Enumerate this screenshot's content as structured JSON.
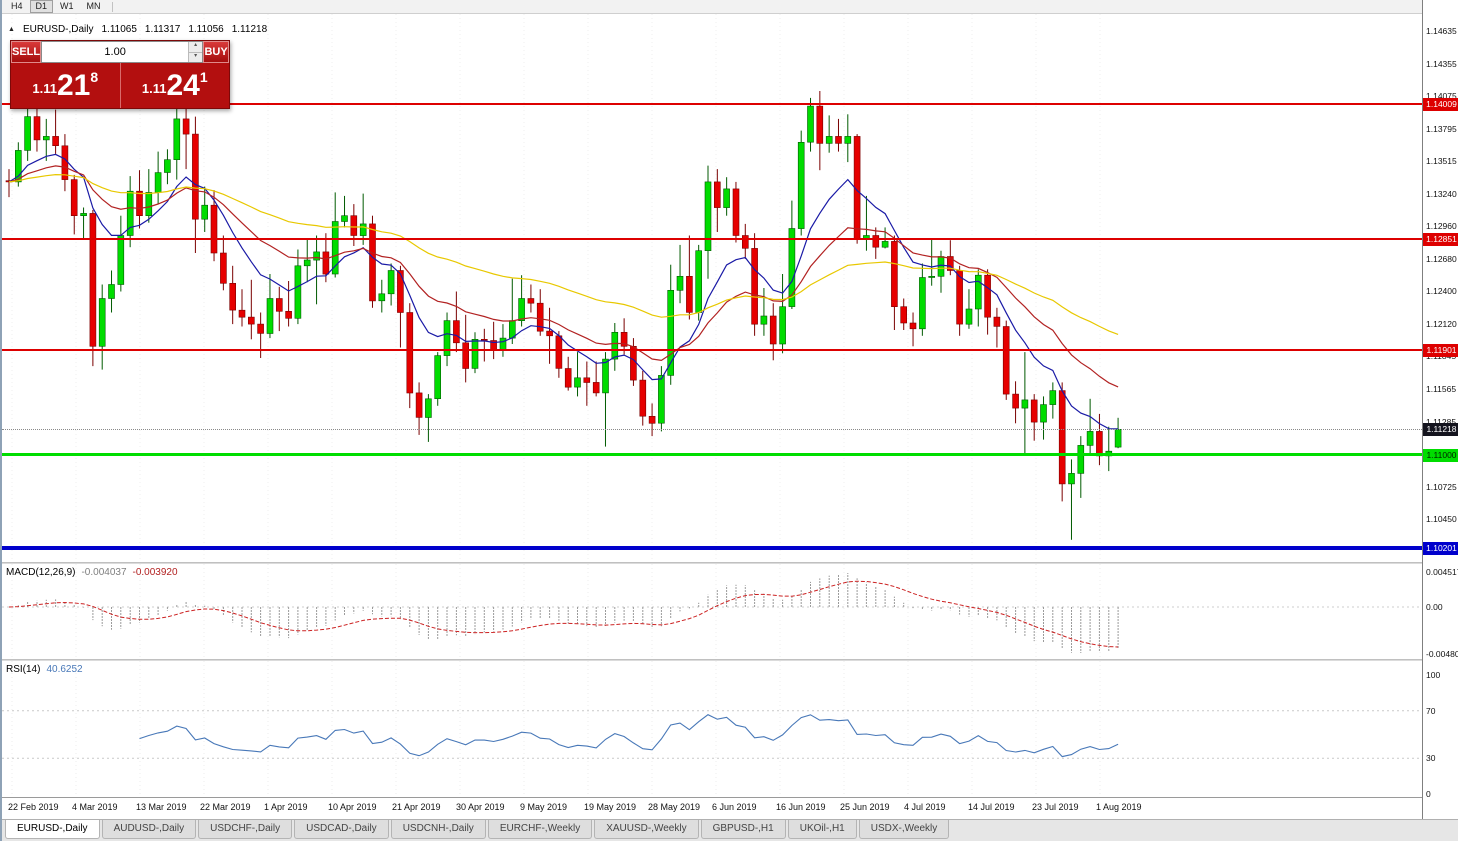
{
  "toolbar": {
    "items": [
      "H4",
      "D1",
      "W1",
      "MN"
    ],
    "active": "D1"
  },
  "chart_info": {
    "symbol_period": "EURUSD-,Daily",
    "open": "1.11065",
    "high": "1.11317",
    "low": "1.11056",
    "close": "1.11218"
  },
  "trade_panel": {
    "sell_label": "SELL",
    "buy_label": "BUY",
    "volume": "1.00",
    "sell": {
      "prefix": "1.11",
      "big": "21",
      "sup": "8"
    },
    "buy": {
      "prefix": "1.11",
      "big": "24",
      "sup": "1"
    }
  },
  "price_axis": {
    "labels": [
      "1.14635",
      "1.14355",
      "1.14075",
      "1.13795",
      "1.13515",
      "1.13240",
      "1.12960",
      "1.12680",
      "1.12400",
      "1.12120",
      "1.11845",
      "1.11565",
      "1.11285",
      "1.11005",
      "1.10725",
      "1.10450"
    ],
    "tags": [
      {
        "text": "1.14009",
        "price": 1.14009,
        "bg": "#dd0000",
        "fg": "#ffffff"
      },
      {
        "text": "1.12851",
        "price": 1.12851,
        "bg": "#dd0000",
        "fg": "#ffffff"
      },
      {
        "text": "1.11901",
        "price": 1.11901,
        "bg": "#dd0000",
        "fg": "#ffffff"
      },
      {
        "text": "1.11218",
        "price": 1.11218,
        "bg": "#14141e",
        "fg": "#ffffff"
      },
      {
        "text": "1.11000",
        "price": 1.11,
        "bg": "#00dd00",
        "fg": "#002000"
      },
      {
        "text": "1.10201",
        "price": 1.10201,
        "bg": "#0000cc",
        "fg": "#ffffff"
      }
    ]
  },
  "levels": [
    {
      "price": 1.14009,
      "color": "#dd0000",
      "width": 2
    },
    {
      "price": 1.12851,
      "color": "#dd0000",
      "width": 2
    },
    {
      "price": 1.11901,
      "color": "#dd0000",
      "width": 2
    },
    {
      "price": 1.11,
      "color": "#00dd00",
      "width": 3
    },
    {
      "price": 1.10201,
      "color": "#0000cc",
      "width": 4
    }
  ],
  "bid": {
    "price": 1.11218
  },
  "indicators": {
    "macd": {
      "name": "MACD(12,26,9)",
      "value_main": "-0.004037",
      "value_signal": "-0.003920",
      "axis": [
        "0.004517",
        "0.00",
        "-0.00480"
      ]
    },
    "rsi": {
      "name": "RSI(14)",
      "value": "40.6252",
      "axis": [
        "100",
        "70",
        "30",
        "0"
      ],
      "levels": [
        70,
        30
      ]
    }
  },
  "date_axis": {
    "labels": [
      "22 Feb 2019",
      "4 Mar 2019",
      "13 Mar 2019",
      "22 Mar 2019",
      "1 Apr 2019",
      "10 Apr 2019",
      "21 Apr 2019",
      "30 Apr 2019",
      "9 May 2019",
      "19 May 2019",
      "28 May 2019",
      "6 Jun 2019",
      "16 Jun 2019",
      "25 Jun 2019",
      "4 Jul 2019",
      "14 Jul 2019",
      "23 Jul 2019",
      "1 Aug 2019"
    ]
  },
  "tabs": [
    {
      "label": "EURUSD-,Daily",
      "active": true
    },
    {
      "label": "AUDUSD-,Daily",
      "active": false
    },
    {
      "label": "USDCHF-,Daily",
      "active": false
    },
    {
      "label": "USDCAD-,Daily",
      "active": false
    },
    {
      "label": "USDCNH-,Daily",
      "active": false
    },
    {
      "label": "EURCHF-,Weekly",
      "active": false
    },
    {
      "label": "XAUUSD-,Weekly",
      "active": false
    },
    {
      "label": "GBPUSD-,H1",
      "active": false
    },
    {
      "label": "UKOil-,H1",
      "active": false
    },
    {
      "label": "USDX-,Weekly",
      "active": false
    }
  ],
  "chart_data": {
    "type": "candlestick",
    "symbol": "EURUSD",
    "timeframe": "Daily",
    "price_range": [
      1.1008,
      1.1478
    ],
    "moving_averages": [
      {
        "period": 10,
        "color": "#1a1aa6"
      },
      {
        "period": 22,
        "color": "#b22222"
      },
      {
        "period": 55,
        "color": "#e8c800"
      }
    ],
    "candles": [
      [
        1.1335,
        1.1345,
        1.1321,
        1.1334
      ],
      [
        1.1334,
        1.1368,
        1.133,
        1.1361
      ],
      [
        1.1361,
        1.1398,
        1.1352,
        1.139
      ],
      [
        1.139,
        1.1404,
        1.136,
        1.137
      ],
      [
        1.137,
        1.1388,
        1.1352,
        1.1373
      ],
      [
        1.1373,
        1.1396,
        1.1358,
        1.1365
      ],
      [
        1.1365,
        1.1375,
        1.1326,
        1.1336
      ],
      [
        1.1336,
        1.134,
        1.1289,
        1.1305
      ],
      [
        1.1305,
        1.1312,
        1.1285,
        1.1307
      ],
      [
        1.1307,
        1.131,
        1.1176,
        1.1193
      ],
      [
        1.1193,
        1.1246,
        1.1173,
        1.1234
      ],
      [
        1.1234,
        1.1258,
        1.1222,
        1.1246
      ],
      [
        1.1246,
        1.1305,
        1.124,
        1.1288
      ],
      [
        1.1288,
        1.1339,
        1.1278,
        1.1326
      ],
      [
        1.1326,
        1.1344,
        1.1294,
        1.1305
      ],
      [
        1.1305,
        1.1345,
        1.1299,
        1.1325
      ],
      [
        1.1325,
        1.136,
        1.1315,
        1.1342
      ],
      [
        1.1342,
        1.1362,
        1.1332,
        1.1353
      ],
      [
        1.1353,
        1.14,
        1.1336,
        1.1388
      ],
      [
        1.1388,
        1.1398,
        1.1345,
        1.1375
      ],
      [
        1.1375,
        1.139,
        1.1273,
        1.1302
      ],
      [
        1.1302,
        1.133,
        1.1291,
        1.1314
      ],
      [
        1.1314,
        1.1327,
        1.1266,
        1.1273
      ],
      [
        1.1273,
        1.1288,
        1.1241,
        1.1247
      ],
      [
        1.1247,
        1.1262,
        1.1212,
        1.1224
      ],
      [
        1.1224,
        1.1242,
        1.121,
        1.1218
      ],
      [
        1.1218,
        1.125,
        1.1199,
        1.1212
      ],
      [
        1.1212,
        1.1222,
        1.1183,
        1.1204
      ],
      [
        1.1204,
        1.1255,
        1.12,
        1.1234
      ],
      [
        1.1234,
        1.1244,
        1.1206,
        1.1223
      ],
      [
        1.1223,
        1.1249,
        1.121,
        1.1217
      ],
      [
        1.1217,
        1.1276,
        1.1212,
        1.1262
      ],
      [
        1.1262,
        1.1285,
        1.1248,
        1.1267
      ],
      [
        1.1267,
        1.1288,
        1.1229,
        1.1274
      ],
      [
        1.1274,
        1.129,
        1.1248,
        1.1255
      ],
      [
        1.1255,
        1.1325,
        1.1252,
        1.13
      ],
      [
        1.13,
        1.1322,
        1.1295,
        1.1305
      ],
      [
        1.1305,
        1.1315,
        1.1279,
        1.1288
      ],
      [
        1.1288,
        1.1324,
        1.128,
        1.1298
      ],
      [
        1.1298,
        1.1305,
        1.1226,
        1.1232
      ],
      [
        1.1232,
        1.125,
        1.1222,
        1.1238
      ],
      [
        1.1238,
        1.1264,
        1.1228,
        1.1258
      ],
      [
        1.1258,
        1.1262,
        1.1192,
        1.1222
      ],
      [
        1.1222,
        1.123,
        1.114,
        1.1153
      ],
      [
        1.1153,
        1.1162,
        1.1117,
        1.1132
      ],
      [
        1.1132,
        1.1152,
        1.1111,
        1.1148
      ],
      [
        1.1148,
        1.1188,
        1.1142,
        1.1185
      ],
      [
        1.1185,
        1.1222,
        1.1176,
        1.1215
      ],
      [
        1.1215,
        1.124,
        1.1188,
        1.1196
      ],
      [
        1.1196,
        1.122,
        1.1162,
        1.1174
      ],
      [
        1.1174,
        1.1205,
        1.117,
        1.1199
      ],
      [
        1.1199,
        1.1208,
        1.118,
        1.1198
      ],
      [
        1.1198,
        1.1214,
        1.1182,
        1.119
      ],
      [
        1.119,
        1.1212,
        1.1184,
        1.12
      ],
      [
        1.12,
        1.1251,
        1.1195,
        1.1215
      ],
      [
        1.1215,
        1.1254,
        1.121,
        1.1234
      ],
      [
        1.1234,
        1.1246,
        1.1222,
        1.123
      ],
      [
        1.123,
        1.1242,
        1.1202,
        1.1206
      ],
      [
        1.1206,
        1.1226,
        1.1178,
        1.1202
      ],
      [
        1.1202,
        1.1206,
        1.1166,
        1.1174
      ],
      [
        1.1174,
        1.1184,
        1.1155,
        1.1158
      ],
      [
        1.1158,
        1.1188,
        1.115,
        1.1166
      ],
      [
        1.1166,
        1.118,
        1.1142,
        1.1162
      ],
      [
        1.1162,
        1.118,
        1.115,
        1.1153
      ],
      [
        1.1153,
        1.1188,
        1.1107,
        1.1182
      ],
      [
        1.1182,
        1.1213,
        1.1172,
        1.1205
      ],
      [
        1.1205,
        1.1217,
        1.1186,
        1.1193
      ],
      [
        1.1193,
        1.12,
        1.1159,
        1.1164
      ],
      [
        1.1164,
        1.1172,
        1.1125,
        1.1133
      ],
      [
        1.1133,
        1.1144,
        1.1116,
        1.1127
      ],
      [
        1.1127,
        1.1176,
        1.112,
        1.1168
      ],
      [
        1.1168,
        1.1263,
        1.116,
        1.1241
      ],
      [
        1.1241,
        1.128,
        1.123,
        1.1253
      ],
      [
        1.1253,
        1.1288,
        1.1216,
        1.1222
      ],
      [
        1.1222,
        1.128,
        1.1215,
        1.1275
      ],
      [
        1.1275,
        1.1348,
        1.1251,
        1.1334
      ],
      [
        1.1334,
        1.1345,
        1.1291,
        1.1312
      ],
      [
        1.1312,
        1.1338,
        1.1305,
        1.1328
      ],
      [
        1.1328,
        1.1334,
        1.1282,
        1.1288
      ],
      [
        1.1288,
        1.1298,
        1.1268,
        1.1277
      ],
      [
        1.1277,
        1.129,
        1.1202,
        1.1212
      ],
      [
        1.1212,
        1.1243,
        1.1202,
        1.1219
      ],
      [
        1.1219,
        1.123,
        1.1181,
        1.1195
      ],
      [
        1.1195,
        1.1255,
        1.1187,
        1.1227
      ],
      [
        1.1227,
        1.1318,
        1.1225,
        1.1294
      ],
      [
        1.1294,
        1.1378,
        1.1288,
        1.1368
      ],
      [
        1.1368,
        1.1406,
        1.136,
        1.1399
      ],
      [
        1.1399,
        1.1412,
        1.1344,
        1.1367
      ],
      [
        1.1367,
        1.1391,
        1.1359,
        1.1373
      ],
      [
        1.1373,
        1.1388,
        1.136,
        1.1367
      ],
      [
        1.1367,
        1.1392,
        1.1351,
        1.1373
      ],
      [
        1.1373,
        1.1375,
        1.1281,
        1.1285
      ],
      [
        1.1285,
        1.1322,
        1.1275,
        1.1288
      ],
      [
        1.1288,
        1.1295,
        1.1268,
        1.1278
      ],
      [
        1.1278,
        1.1295,
        1.1277,
        1.1283
      ],
      [
        1.1283,
        1.1288,
        1.1207,
        1.1227
      ],
      [
        1.1227,
        1.1234,
        1.1207,
        1.1213
      ],
      [
        1.1213,
        1.1222,
        1.1193,
        1.1208
      ],
      [
        1.1208,
        1.1264,
        1.1202,
        1.1252
      ],
      [
        1.1252,
        1.1285,
        1.1245,
        1.1253
      ],
      [
        1.1253,
        1.1275,
        1.1239,
        1.127
      ],
      [
        1.127,
        1.1284,
        1.1254,
        1.1258
      ],
      [
        1.1258,
        1.1262,
        1.1202,
        1.1212
      ],
      [
        1.1212,
        1.1242,
        1.1208,
        1.1225
      ],
      [
        1.1225,
        1.1259,
        1.121,
        1.1254
      ],
      [
        1.1254,
        1.1259,
        1.1203,
        1.1218
      ],
      [
        1.1218,
        1.1226,
        1.1192,
        1.121
      ],
      [
        1.121,
        1.1215,
        1.1147,
        1.1152
      ],
      [
        1.1152,
        1.1163,
        1.1127,
        1.114
      ],
      [
        1.114,
        1.1188,
        1.1101,
        1.1147
      ],
      [
        1.1147,
        1.1152,
        1.1112,
        1.1128
      ],
      [
        1.1128,
        1.115,
        1.1113,
        1.1143
      ],
      [
        1.1143,
        1.1162,
        1.1131,
        1.1155
      ],
      [
        1.1155,
        1.1162,
        1.106,
        1.1075
      ],
      [
        1.1075,
        1.1096,
        1.1027,
        1.1084
      ],
      [
        1.1084,
        1.1116,
        1.1063,
        1.1108
      ],
      [
        1.1108,
        1.1148,
        1.1101,
        1.112
      ],
      [
        1.112,
        1.1135,
        1.1091,
        1.1099
      ],
      [
        1.1099,
        1.1124,
        1.1086,
        1.1103
      ],
      [
        1.11065,
        1.11317,
        1.11056,
        1.11218
      ]
    ]
  }
}
